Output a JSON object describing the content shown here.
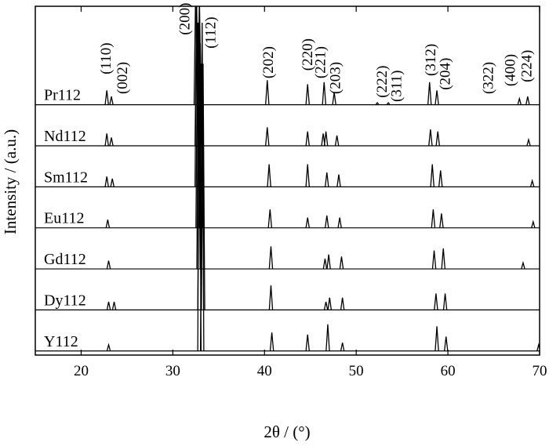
{
  "chart_data": {
    "type": "spectrum",
    "x_label": "2θ / (°)",
    "y_label": "Intensity / (a.u.)",
    "xlim": [
      15,
      70
    ],
    "xticks": [
      20,
      30,
      40,
      50,
      60,
      70
    ],
    "ylim": [
      0,
      8.5
    ],
    "series": [
      {
        "name": "Pr112",
        "color": "#000000",
        "x": [
          22.8,
          23.3,
          32.5,
          32.9,
          40.3,
          44.7,
          46.5,
          47.6,
          52.3,
          53.5,
          58.0,
          58.8,
          67.8,
          68.7
        ],
        "values": [
          0.35,
          0.2,
          3.0,
          2.6,
          0.6,
          0.5,
          0.55,
          0.3,
          0.05,
          0.05,
          0.55,
          0.35,
          0.15,
          0.2
        ]
      },
      {
        "name": "Nd112",
        "color": "#000000",
        "x": [
          22.8,
          23.3,
          32.6,
          32.9,
          40.3,
          44.7,
          46.4,
          46.7,
          47.9,
          58.1,
          58.9,
          68.8
        ],
        "values": [
          0.3,
          0.2,
          3.5,
          3.0,
          0.45,
          0.35,
          0.3,
          0.35,
          0.25,
          0.4,
          0.35,
          0.15
        ]
      },
      {
        "name": "Sm112",
        "color": "#000000",
        "x": [
          22.8,
          23.4,
          32.6,
          33.0,
          40.5,
          44.7,
          46.8,
          48.1,
          58.3,
          59.2,
          69.2
        ],
        "values": [
          0.25,
          0.2,
          4.5,
          3.5,
          0.55,
          0.55,
          0.35,
          0.3,
          0.55,
          0.4,
          0.15
        ]
      },
      {
        "name": "Eu112",
        "color": "#000000",
        "x": [
          22.9,
          32.7,
          33.1,
          40.6,
          44.7,
          46.8,
          48.2,
          58.4,
          59.3,
          69.3
        ],
        "values": [
          0.2,
          5,
          4,
          0.45,
          0.25,
          0.3,
          0.25,
          0.45,
          0.35,
          0.15
        ]
      },
      {
        "name": "Gd112",
        "color": "#000000",
        "x": [
          23.0,
          32.8,
          33.2,
          40.7,
          46.6,
          47.0,
          48.4,
          58.5,
          59.5,
          68.2
        ],
        "values": [
          0.2,
          6,
          5,
          0.55,
          0.25,
          0.35,
          0.3,
          0.45,
          0.5,
          0.15
        ]
      },
      {
        "name": "Dy112",
        "color": "#000000",
        "x": [
          23.0,
          23.6,
          32.9,
          33.3,
          40.7,
          46.7,
          47.1,
          48.5,
          58.7,
          59.7
        ],
        "values": [
          0.2,
          0.2,
          7,
          6,
          0.6,
          0.2,
          0.3,
          0.3,
          0.4,
          0.4
        ]
      },
      {
        "name": "Y112",
        "color": "#000000",
        "x": [
          23.0,
          32.9,
          33.2,
          40.8,
          44.7,
          46.9,
          48.5,
          58.8,
          59.8,
          69.9
        ],
        "values": [
          0.15,
          8,
          8,
          0.45,
          0.4,
          0.65,
          0.2,
          0.6,
          0.35,
          0.15
        ]
      }
    ],
    "annotations": [
      {
        "text": "(110)",
        "x": 22.7,
        "y": 6.84
      },
      {
        "text": "(002)",
        "x": 24.5,
        "y": 6.36
      },
      {
        "text": "(200)",
        "x": 31.3,
        "y": 7.8
      },
      {
        "text": "(112)",
        "x": 34.1,
        "y": 7.47
      },
      {
        "text": "(202)",
        "x": 40.4,
        "y": 6.74
      },
      {
        "text": "(220)",
        "x": 44.7,
        "y": 6.93
      },
      {
        "text": "(221)",
        "x": 46.1,
        "y": 6.74
      },
      {
        "text": "(203)",
        "x": 47.7,
        "y": 6.36
      },
      {
        "text": "(222)",
        "x": 52.8,
        "y": 6.27
      },
      {
        "text": "(311)",
        "x": 54.4,
        "y": 6.17
      },
      {
        "text": "(312)",
        "x": 58.1,
        "y": 6.8
      },
      {
        "text": "(204)",
        "x": 59.7,
        "y": 6.46
      },
      {
        "text": "(322)",
        "x": 64.4,
        "y": 6.36
      },
      {
        "text": "(400)",
        "x": 66.8,
        "y": 6.55
      },
      {
        "text": "(224)",
        "x": 68.6,
        "y": 6.65
      }
    ]
  }
}
